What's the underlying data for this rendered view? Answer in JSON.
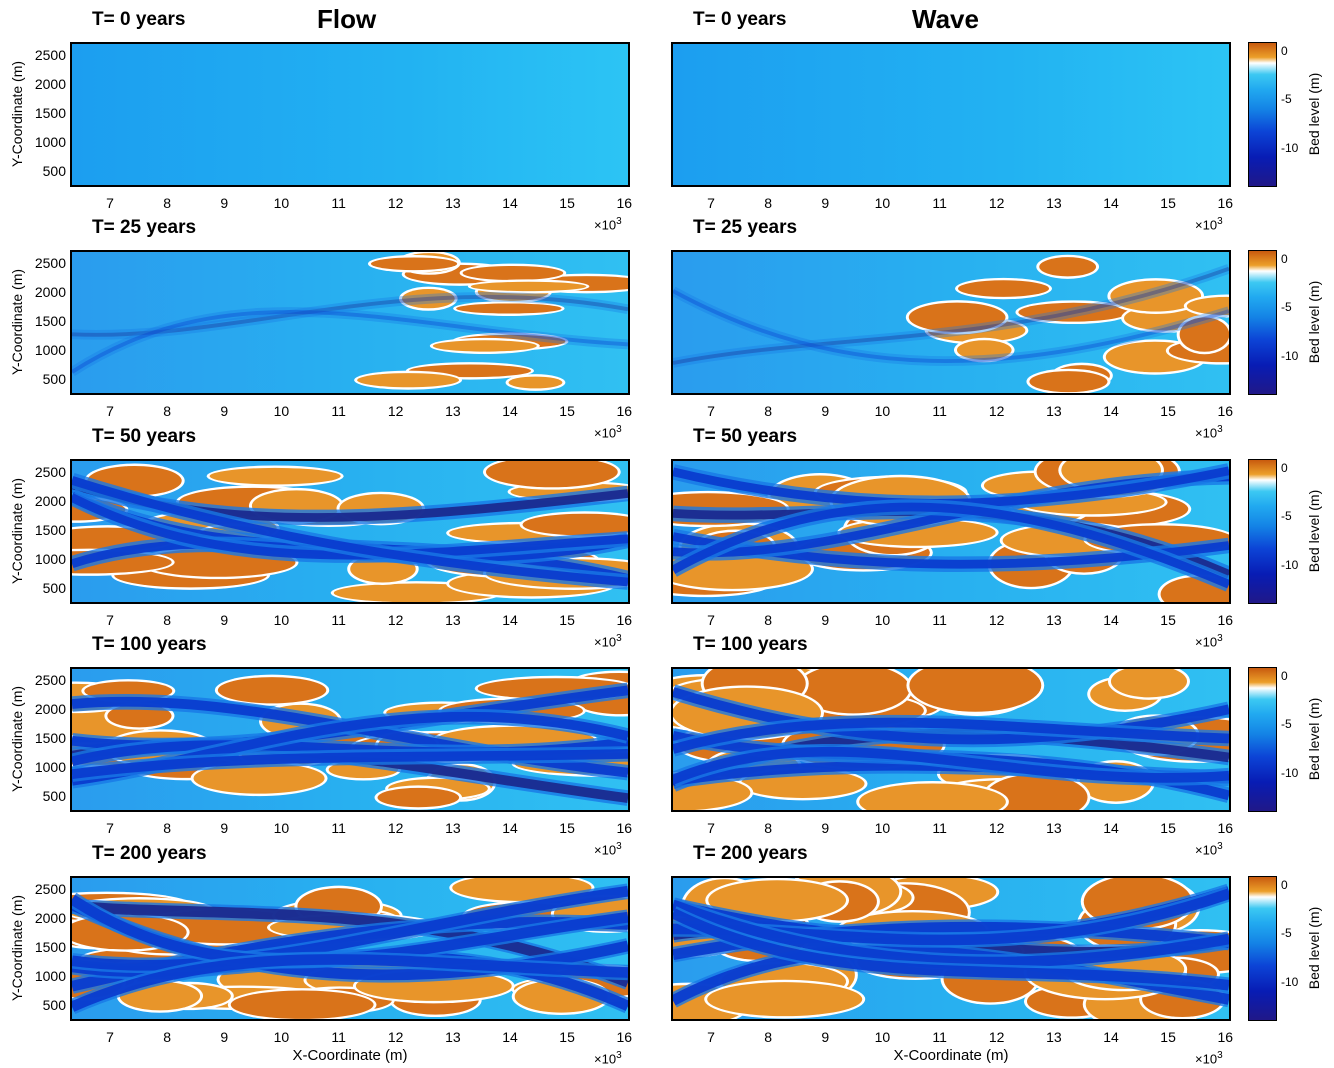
{
  "columns": [
    {
      "id": "flow",
      "title": "Flow"
    },
    {
      "id": "wave",
      "title": "Wave"
    }
  ],
  "panel_titles": [
    "T= 0 years",
    "T= 25 years",
    "T= 50 years",
    "T= 100 years",
    "T= 200 years"
  ],
  "x_ticks": [
    "7",
    "8",
    "9",
    "10",
    "11",
    "12",
    "13",
    "14",
    "15",
    "16"
  ],
  "y_ticks": [
    "2500",
    "2000",
    "1500",
    "1000",
    "500"
  ],
  "x_multiplier": "×10",
  "x_multiplier_exp": "3",
  "ylabel": "Y-Coordinate (m)",
  "xlabel": "X-Coordinate (m)",
  "colorbar": {
    "label": "Bed level (m)",
    "ticks": [
      "0",
      "-5",
      "-10"
    ]
  },
  "colors": {
    "shoal": "#e8952a",
    "shoal_dark": "#d9731a",
    "shallow": "#ffffff",
    "mid": "#2bb4f0",
    "deep": "#0a3ccf",
    "deepest": "#1a2a8f"
  },
  "chart_data": {
    "type": "heatmap",
    "xlabel": "X-Coordinate (m)",
    "ylabel": "Y-Coordinate (m)",
    "xlim": [
      6300,
      16100
    ],
    "ylim": [
      200,
      2750
    ],
    "x_scale_note": "×10^3",
    "colorbar": {
      "label": "Bed level (m)",
      "range": [
        -14,
        1
      ],
      "ticks": [
        0,
        -5,
        -10
      ]
    },
    "panels": [
      {
        "column": "Flow",
        "title": "T= 0 years",
        "shoal_fraction": 0.0
      },
      {
        "column": "Flow",
        "title": "T= 25 years",
        "shoal_fraction": 0.12
      },
      {
        "column": "Flow",
        "title": "T= 50 years",
        "shoal_fraction": 0.35
      },
      {
        "column": "Flow",
        "title": "T= 100 years",
        "shoal_fraction": 0.55
      },
      {
        "column": "Flow",
        "title": "T= 200 years",
        "shoal_fraction": 0.65
      },
      {
        "column": "Wave",
        "title": "T= 0 years",
        "shoal_fraction": 0.0
      },
      {
        "column": "Wave",
        "title": "T= 25 years",
        "shoal_fraction": 0.15
      },
      {
        "column": "Wave",
        "title": "T= 50 years",
        "shoal_fraction": 0.45
      },
      {
        "column": "Wave",
        "title": "T= 100 years",
        "shoal_fraction": 0.58
      },
      {
        "column": "Wave",
        "title": "T= 200 years",
        "shoal_fraction": 0.68
      }
    ]
  }
}
